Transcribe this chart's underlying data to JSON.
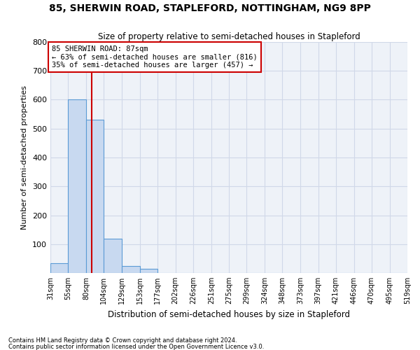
{
  "title1": "85, SHERWIN ROAD, STAPLEFORD, NOTTINGHAM, NG9 8PP",
  "title2": "Size of property relative to semi-detached houses in Stapleford",
  "xlabel": "Distribution of semi-detached houses by size in Stapleford",
  "ylabel": "Number of semi-detached properties",
  "bin_labels": [
    "31sqm",
    "55sqm",
    "80sqm",
    "104sqm",
    "129sqm",
    "153sqm",
    "177sqm",
    "202sqm",
    "226sqm",
    "251sqm",
    "275sqm",
    "299sqm",
    "324sqm",
    "348sqm",
    "373sqm",
    "397sqm",
    "421sqm",
    "446sqm",
    "470sqm",
    "495sqm",
    "519sqm"
  ],
  "bin_edges": [
    31,
    55,
    80,
    104,
    129,
    153,
    177,
    202,
    226,
    251,
    275,
    299,
    324,
    348,
    373,
    397,
    421,
    446,
    470,
    495,
    519
  ],
  "bar_heights": [
    33,
    600,
    530,
    120,
    25,
    15,
    0,
    0,
    0,
    0,
    0,
    0,
    0,
    0,
    0,
    0,
    0,
    0,
    0,
    0
  ],
  "bar_color": "#c8d9f0",
  "bar_edgecolor": "#5b9bd5",
  "subject_size": 87,
  "subject_label": "85 SHERWIN ROAD: 87sqm",
  "pct_smaller": 63,
  "count_smaller": 816,
  "pct_larger": 35,
  "count_larger": 457,
  "vline_color": "#cc0000",
  "annotation_box_edgecolor": "#cc0000",
  "ylim": [
    0,
    800
  ],
  "yticks": [
    0,
    100,
    200,
    300,
    400,
    500,
    600,
    700,
    800
  ],
  "grid_color": "#d0d8e8",
  "bg_color": "#eef2f8",
  "footnote1": "Contains HM Land Registry data © Crown copyright and database right 2024.",
  "footnote2": "Contains public sector information licensed under the Open Government Licence v3.0."
}
